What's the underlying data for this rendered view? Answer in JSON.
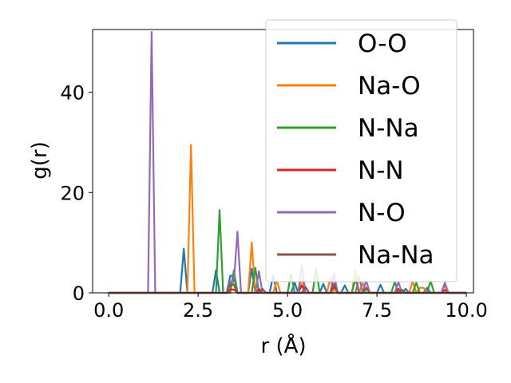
{
  "chart_data": {
    "type": "line",
    "xlabel": "r (Å)",
    "ylabel": "g(r)",
    "xlim": [
      -0.45,
      10.2
    ],
    "ylim": [
      0,
      52.5
    ],
    "xticks": [
      0.0,
      2.5,
      5.0,
      7.5,
      10.0
    ],
    "xtick_labels": [
      "0.0",
      "2.5",
      "5.0",
      "7.5",
      "10.0"
    ],
    "yticks": [
      0,
      20,
      40
    ],
    "ytick_labels": [
      "0",
      "20",
      "40"
    ],
    "grid": false,
    "legend_position": "top-right",
    "r_range": [
      0.0,
      10.0
    ],
    "series": [
      {
        "name": "O-O",
        "color": "#1f77b4",
        "peaks": [
          [
            2.1,
            8.8
          ],
          [
            3.0,
            4.5
          ],
          [
            3.45,
            6.8
          ],
          [
            4.0,
            4.8
          ],
          [
            4.6,
            3.5
          ],
          [
            5.2,
            2.0
          ],
          [
            6.0,
            1.8
          ],
          [
            6.6,
            1.5
          ],
          [
            7.6,
            1.6
          ],
          [
            8.3,
            0.8
          ],
          [
            8.9,
            1.0
          ]
        ]
      },
      {
        "name": "Na-O",
        "color": "#ff7f0e",
        "peaks": [
          [
            2.3,
            29.5
          ],
          [
            3.45,
            3.5
          ],
          [
            4.0,
            10.0
          ],
          [
            4.7,
            2.5
          ],
          [
            5.4,
            2.8
          ],
          [
            6.2,
            3.0
          ],
          [
            6.9,
            4.5
          ],
          [
            7.1,
            2.0
          ],
          [
            8.5,
            2.3
          ],
          [
            8.75,
            2.0
          ],
          [
            9.4,
            1.5
          ]
        ]
      },
      {
        "name": "N-Na",
        "color": "#2ca02c",
        "peaks": [
          [
            3.1,
            16.5
          ],
          [
            3.5,
            4.5
          ],
          [
            4.1,
            5.0
          ],
          [
            5.1,
            3.8
          ],
          [
            5.8,
            4.8
          ],
          [
            6.3,
            3.5
          ],
          [
            6.9,
            2.8
          ],
          [
            8.0,
            2.2
          ],
          [
            8.6,
            2.0
          ],
          [
            9.0,
            2.4
          ]
        ]
      },
      {
        "name": "N-N",
        "color": "#d62728",
        "peaks": [
          [
            3.45,
            1.3
          ],
          [
            4.2,
            0.8
          ],
          [
            5.4,
            1.5
          ],
          [
            6.3,
            1.2
          ],
          [
            7.2,
            1.0
          ],
          [
            8.1,
            0.8
          ],
          [
            9.4,
            0.6
          ]
        ]
      },
      {
        "name": "N-O",
        "color": "#9467bd",
        "peaks": [
          [
            1.2,
            52.0
          ],
          [
            3.45,
            4.5
          ],
          [
            3.6,
            12.2
          ],
          [
            4.2,
            4.3
          ],
          [
            5.4,
            5.5
          ],
          [
            6.3,
            4.0
          ],
          [
            7.0,
            3.2
          ],
          [
            7.2,
            2.5
          ],
          [
            8.1,
            2.2
          ],
          [
            9.4,
            2.0
          ]
        ]
      },
      {
        "name": "Na-Na",
        "color": "#8c564b",
        "peaks": [
          [
            3.45,
            3.2
          ],
          [
            4.3,
            0.8
          ],
          [
            5.5,
            1.2
          ],
          [
            6.3,
            1.8
          ],
          [
            7.2,
            1.0
          ],
          [
            8.2,
            0.6
          ]
        ]
      }
    ]
  }
}
